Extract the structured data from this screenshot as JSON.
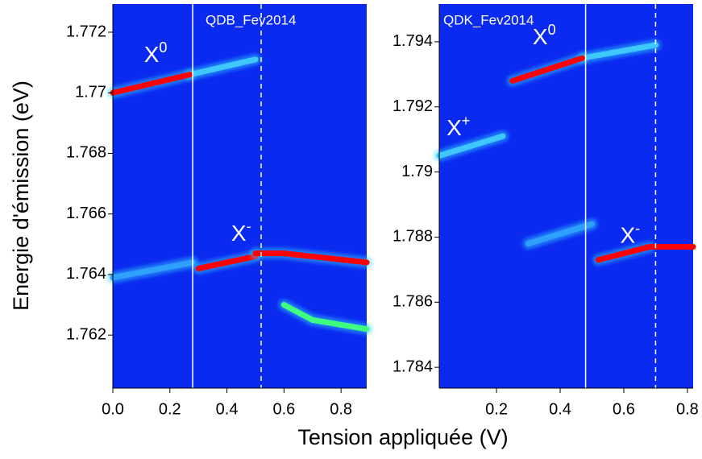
{
  "figure": {
    "xlabel": "Tension appliquée (V)",
    "ylabel": "Energie d'émission (eV)"
  },
  "chart_data": [
    {
      "type": "heatmap",
      "title": "QDB_Fev2014",
      "background": "#0a2af0",
      "xlim": [
        0,
        0.89
      ],
      "ylim": [
        1.76025,
        1.77293
      ],
      "xticks": [
        {
          "value": 0,
          "label": "0.0"
        },
        0.2,
        0.4,
        0.6,
        0.8
      ],
      "yticks": [
        1.762,
        1.764,
        1.766,
        1.768,
        1.77,
        1.772
      ],
      "vlines": [
        {
          "value": 0.28,
          "style": "solid"
        },
        {
          "value": 0.52,
          "style": "dashed"
        }
      ],
      "series": [
        {
          "color": "#3fc8ff",
          "x": [
            0.27,
            0.5
          ],
          "values": [
            1.7706,
            1.7711
          ]
        },
        {
          "color": "#ff0000",
          "x": [
            0.0,
            0.27
          ],
          "values": [
            1.77,
            1.7706
          ]
        },
        {
          "color": "#30a0ff",
          "x": [
            0.0,
            0.28
          ],
          "values": [
            1.7639,
            1.7644
          ]
        },
        {
          "color": "#40ff80",
          "x": [
            0.6,
            0.7,
            0.89
          ],
          "values": [
            1.763,
            1.7625,
            1.7622
          ]
        },
        {
          "color": "#ff0000",
          "x": [
            0.3,
            0.5
          ],
          "values": [
            1.7642,
            1.7646
          ]
        },
        {
          "color": "#ff0000",
          "x": [
            0.5,
            0.6,
            0.89
          ],
          "values": [
            1.7647,
            1.7647,
            1.7644
          ]
        }
      ],
      "annotations": [
        {
          "text": "X",
          "sup": "0",
          "x": 0.15,
          "y": 1.7712
        },
        {
          "text": "X",
          "sup": "-",
          "x": 0.45,
          "y": 1.7653
        }
      ]
    },
    {
      "type": "heatmap",
      "title": "QDK_Fev2014",
      "background": "#0a2af0",
      "xlim": [
        0.02,
        0.818
      ],
      "ylim": [
        1.78336,
        1.79516
      ],
      "xticks": [
        0.2,
        0.4,
        0.6,
        0.8
      ],
      "yticks": [
        1.784,
        1.786,
        1.788,
        1.79,
        1.792,
        1.794
      ],
      "vlines": [
        {
          "value": 0.48,
          "style": "solid"
        },
        {
          "value": 0.7,
          "style": "dashed"
        }
      ],
      "series": [
        {
          "color": "#3fc8ff",
          "x": [
            0.47,
            0.7
          ],
          "values": [
            1.7935,
            1.7939
          ]
        },
        {
          "color": "#ff0000",
          "x": [
            0.25,
            0.47
          ],
          "values": [
            1.7928,
            1.7935
          ]
        },
        {
          "color": "#3fc8ff",
          "x": [
            0.02,
            0.22
          ],
          "values": [
            1.7905,
            1.7911
          ]
        },
        {
          "color": "#30a0ff",
          "x": [
            0.3,
            0.5
          ],
          "values": [
            1.7878,
            1.7884
          ]
        },
        {
          "color": "#ff0000",
          "x": [
            0.52,
            0.68
          ],
          "values": [
            1.7873,
            1.7877
          ]
        },
        {
          "color": "#ff0000",
          "x": [
            0.68,
            0.818
          ],
          "values": [
            1.7877,
            1.7877
          ]
        }
      ],
      "annotations": [
        {
          "text": "X",
          "sup": "0",
          "x": 0.35,
          "y": 1.7941
        },
        {
          "text": "X",
          "sup": "+",
          "x": 0.08,
          "y": 1.7913
        },
        {
          "text": "X",
          "sup": "-",
          "x": 0.62,
          "y": 1.788
        }
      ]
    }
  ]
}
